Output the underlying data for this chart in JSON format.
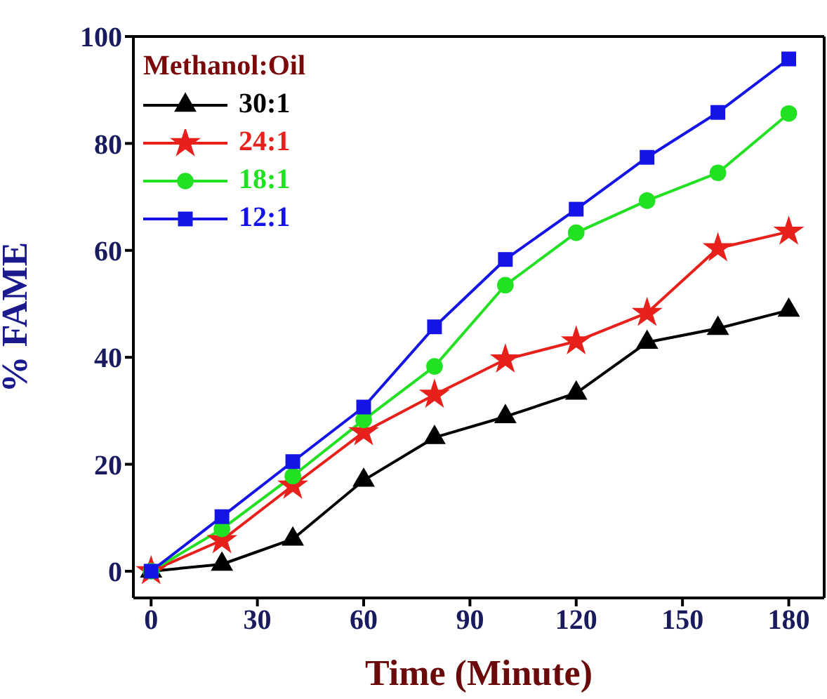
{
  "chart_data": {
    "type": "line",
    "xlabel": "Time (Minute)",
    "ylabel": "% FAME",
    "legend_title": "Methanol:Oil",
    "legend": "top left",
    "x": [
      0,
      20,
      40,
      60,
      80,
      100,
      120,
      140,
      160,
      180
    ],
    "xlim": [
      -5,
      190
    ],
    "xticks": [
      0,
      30,
      60,
      90,
      120,
      150,
      180
    ],
    "ylim": [
      -5,
      100
    ],
    "yticks": [
      0,
      20,
      40,
      60,
      80,
      100
    ],
    "grid": false,
    "series": [
      {
        "name": "30:1",
        "color": "#000000",
        "marker": "triangle",
        "values": [
          0,
          1.3,
          6,
          17,
          25,
          28.9,
          33.3,
          42.8,
          45.4,
          48.8
        ]
      },
      {
        "name": "24:1",
        "color": "#e8201c",
        "marker": "star",
        "values": [
          0,
          5.8,
          16,
          26,
          33,
          39.6,
          43,
          48.3,
          60.4,
          63.5
        ]
      },
      {
        "name": "18:1",
        "color": "#22e022",
        "marker": "circle",
        "values": [
          0,
          7.9,
          17.8,
          28.3,
          38.3,
          53.5,
          63.3,
          69.3,
          74.5,
          85.6
        ]
      },
      {
        "name": "12:1",
        "color": "#1414e6",
        "marker": "square",
        "values": [
          0,
          10.2,
          20.5,
          30.7,
          45.7,
          58.3,
          67.7,
          77.4,
          85.8,
          95.8
        ]
      }
    ]
  }
}
